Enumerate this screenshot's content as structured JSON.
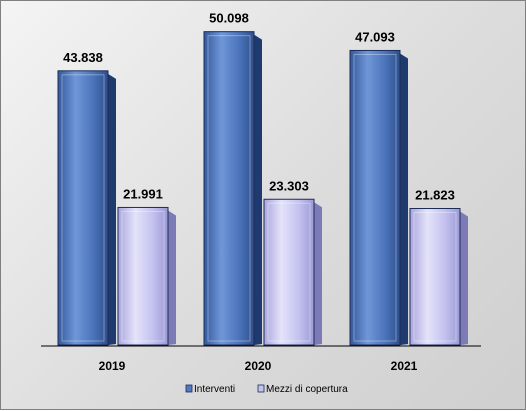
{
  "chart_data": {
    "type": "bar",
    "categories": [
      "2019",
      "2020",
      "2021"
    ],
    "series": [
      {
        "name": "Interventi",
        "values": [
          43838,
          50098,
          47093
        ],
        "labels": [
          "43.838",
          "50.098",
          "47.093"
        ],
        "color": "#4f7bc4"
      },
      {
        "name": "Mezzi di copertura",
        "values": [
          21991,
          23303,
          21823
        ],
        "labels": [
          "21.991",
          "23.303",
          "21.823"
        ],
        "color": "#c4c2ee"
      }
    ],
    "ylim": [
      0,
      55000
    ],
    "grid": false,
    "legend": "bottom"
  }
}
